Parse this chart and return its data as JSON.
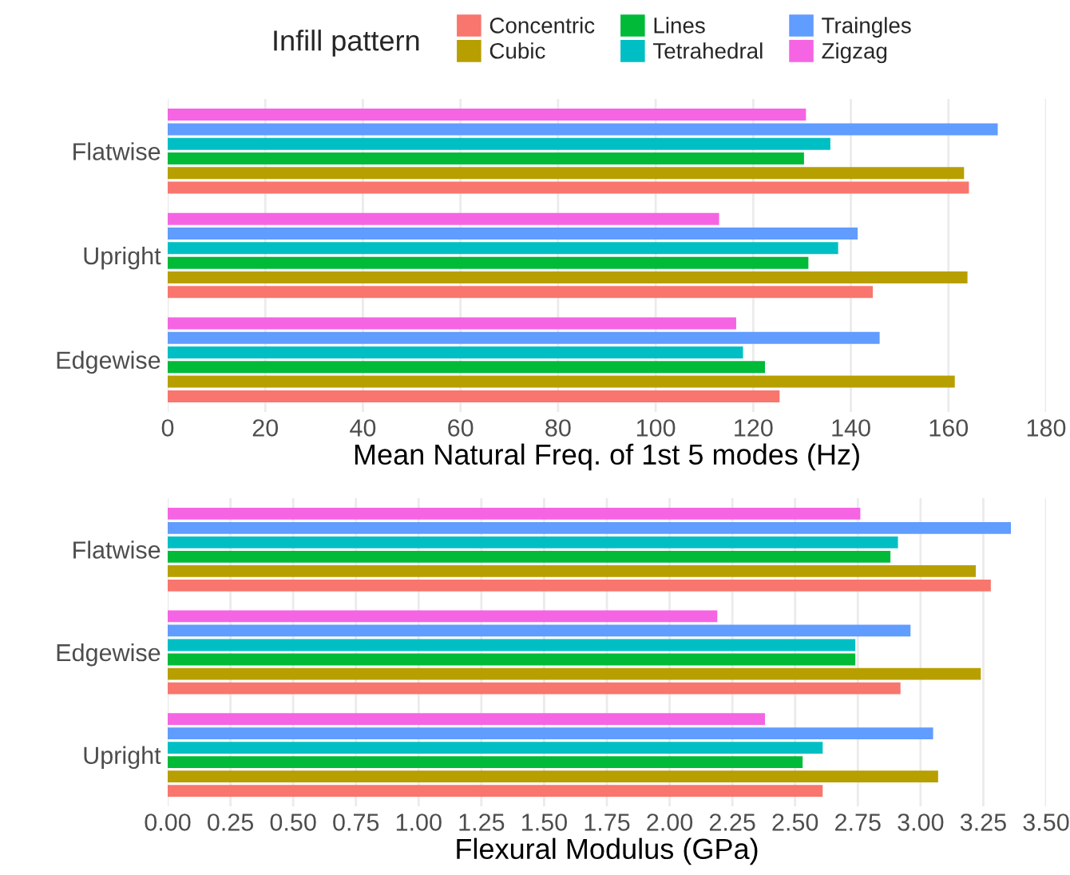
{
  "chart_data": [
    {
      "type": "bar",
      "orientation": "horizontal",
      "legend_title": "Infill pattern",
      "legend": "top",
      "grid": "x",
      "xlabel": "Mean Natural Freq. of 1st 5 modes (Hz)",
      "categories": [
        "Flatwise",
        "Upright",
        "Edgewise"
      ],
      "series": [
        {
          "name": "Concentric",
          "color": "#f8766d",
          "values": [
            164.2,
            144.5,
            125.4
          ]
        },
        {
          "name": "Cubic",
          "color": "#b79f00",
          "values": [
            163.2,
            163.9,
            161.3
          ]
        },
        {
          "name": "Lines",
          "color": "#00ba38",
          "values": [
            130.4,
            131.3,
            122.4
          ]
        },
        {
          "name": "Tetrahedral",
          "color": "#00bfc4",
          "values": [
            135.8,
            137.4,
            117.9
          ]
        },
        {
          "name": "Traingles",
          "color": "#619cff",
          "values": [
            170.1,
            141.4,
            145.9
          ]
        },
        {
          "name": "Zigzag",
          "color": "#f564e3",
          "values": [
            130.8,
            113.0,
            116.5
          ]
        }
      ],
      "xlim": [
        0,
        180
      ],
      "xticks": [
        0,
        20,
        40,
        60,
        80,
        100,
        120,
        140,
        160,
        180
      ]
    },
    {
      "type": "bar",
      "orientation": "horizontal",
      "grid": "x",
      "xlabel": "Flexural Modulus (GPa)",
      "categories": [
        "Flatwise",
        "Edgewise",
        "Upright"
      ],
      "series": [
        {
          "color": "#f8766d",
          "values": [
            3.28,
            2.92,
            2.61
          ]
        },
        {
          "color": "#b79f00",
          "values": [
            3.22,
            3.24,
            3.07
          ]
        },
        {
          "color": "#00ba38",
          "values": [
            2.88,
            2.74,
            2.53
          ]
        },
        {
          "color": "#00bfc4",
          "values": [
            2.91,
            2.74,
            2.61
          ]
        },
        {
          "color": "#619cff",
          "values": [
            3.36,
            2.96,
            3.05
          ]
        },
        {
          "color": "#f564e3",
          "values": [
            2.76,
            2.19,
            2.38
          ]
        }
      ],
      "xlim": [
        0,
        3.5
      ],
      "xticks": [
        {
          "value": 0,
          "label": "0.00"
        },
        {
          "value": 0.25,
          "label": "0.25"
        },
        {
          "value": 0.5,
          "label": "0.50"
        },
        {
          "value": 0.75,
          "label": "0.75"
        },
        {
          "value": 1,
          "label": "1.00"
        },
        {
          "value": 1.25,
          "label": "1.25"
        },
        {
          "value": 1.5,
          "label": "1.50"
        },
        {
          "value": 1.75,
          "label": "1.75"
        },
        {
          "value": 2,
          "label": "2.00"
        },
        {
          "value": 2.25,
          "label": "2.25"
        },
        {
          "value": 2.5,
          "label": "2.50"
        },
        {
          "value": 2.75,
          "label": "2.75"
        },
        {
          "value": 3,
          "label": "3.00"
        },
        {
          "value": 3.25,
          "label": "3.25"
        },
        {
          "value": 3.5,
          "label": "3.50"
        }
      ]
    }
  ]
}
